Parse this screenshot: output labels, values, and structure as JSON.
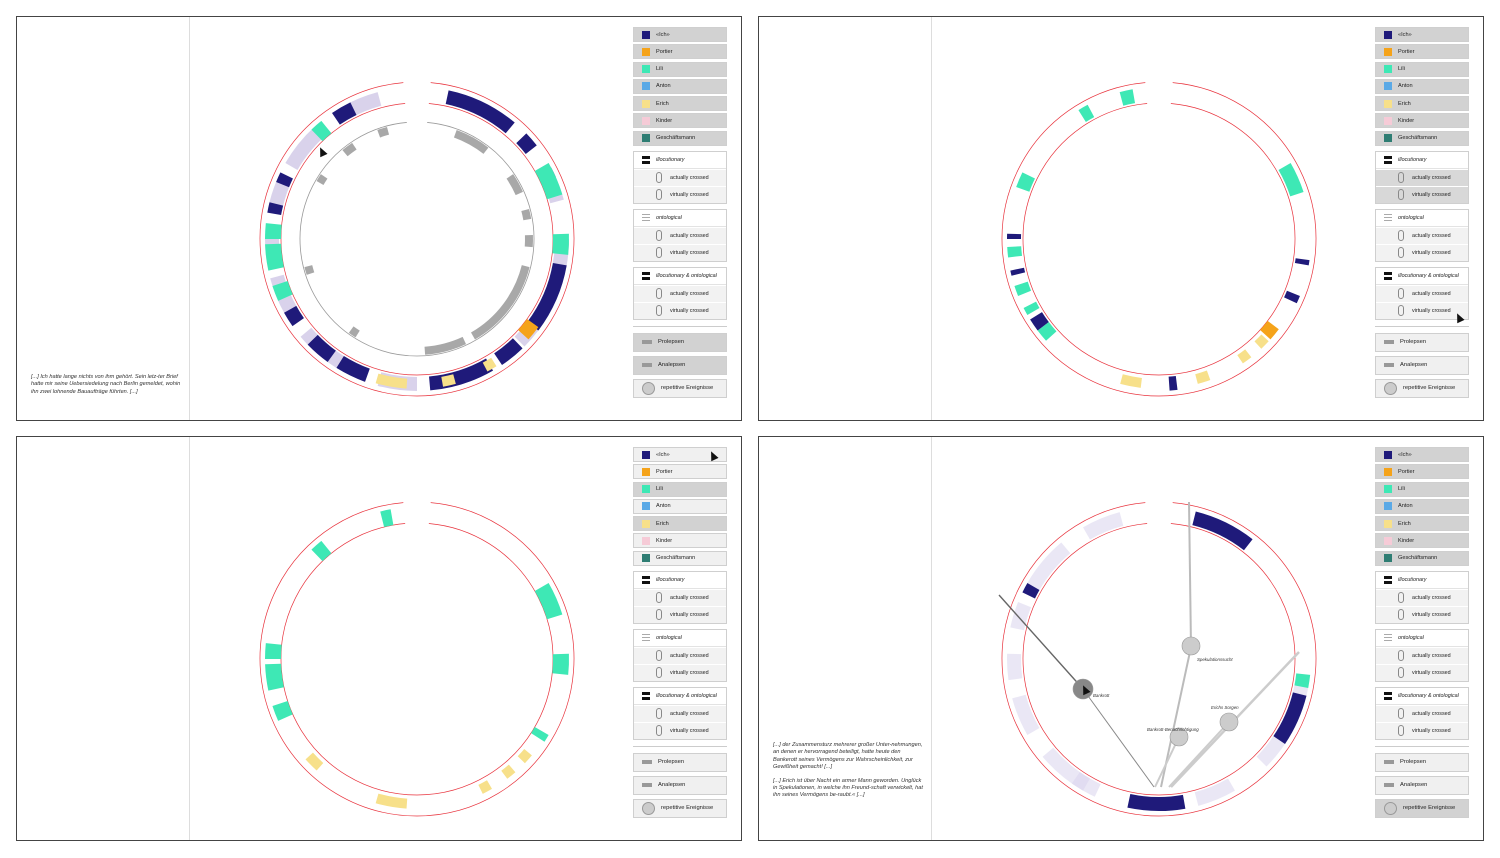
{
  "characters": [
    {
      "label": "«Ich»",
      "color": "#1f1a7a"
    },
    {
      "label": "Portier",
      "color": "#f5a31a"
    },
    {
      "label": "Lili",
      "color": "#3ee8b5"
    },
    {
      "label": "Anton",
      "color": "#5aa9e6"
    },
    {
      "label": "Erich",
      "color": "#f7e08a"
    },
    {
      "label": "Kinder",
      "color": "#f6cbd7"
    },
    {
      "label": "Geschäftsmann",
      "color": "#2e7d73"
    }
  ],
  "groups": [
    {
      "title": "illocutionary",
      "rows": [
        "actually crossed",
        "virtually crossed"
      ]
    },
    {
      "title": "ontological",
      "rows": [
        "actually crossed",
        "virtually crossed"
      ]
    },
    {
      "title": "illocutionary & ontological",
      "rows": [
        "actually crossed",
        "virtually crossed"
      ]
    }
  ],
  "buttons": [
    {
      "label": "Prolepsen"
    },
    {
      "label": "Analepsen"
    },
    {
      "label": "repetitive Ereignisse"
    }
  ],
  "quotes": {
    "panel1": "[...] Ich hatte lange nichts von ihm gehört. Sein letz-ter Brief hatte mir seine Uebersiedelung nach Berlin gemeldet, wohin ihn zwei lohnende Bauaufträge führten. [...]",
    "panel4a": "[...] der Zusammensturz mehrerer großer Unter-nehmungen, an denen er hervorragend beteiligt, hatte heute den Bankerott seines Vermögens zur Wahrscheinlichkeit, zur Gewißheit gemacht! [...]",
    "panel4b": "[...] Erich ist über Nacht ein armer Mann geworden. Unglück in Spekulationen, in welche ihn Freund-schaft verwickelt, hat ihn seines Vermögens be-raubt.« [...]"
  },
  "events": {
    "bankrott": "Bankrott",
    "spekulationssucht": "Spekulationssucht",
    "erichs_sorgen": "Erichs Sorgen",
    "bankrott_benachrichtigung": "Bankrott-Benachrichtigung"
  },
  "colors": {
    "accent_red": "#e8323c",
    "analepse_gray": "#9a9a9a",
    "event_lavender": "#cfc7e6"
  }
}
